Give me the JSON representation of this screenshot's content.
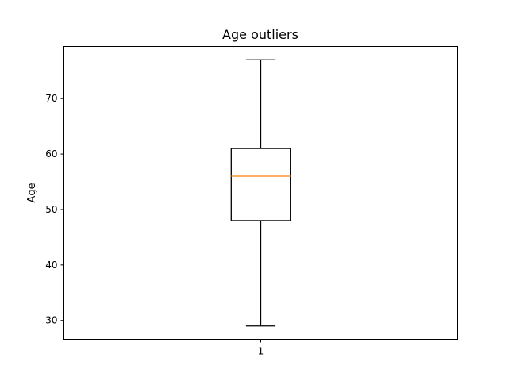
{
  "chart_data": {
    "type": "boxplot",
    "title": "Age outliers",
    "xlabel": "",
    "ylabel": "Age",
    "categories": [
      "1"
    ],
    "boxes": [
      {
        "category": "1",
        "whisker_low": 29,
        "q1": 48,
        "median": 56,
        "q3": 61,
        "whisker_high": 77
      }
    ],
    "ylim": [
      26.6,
      79.4
    ],
    "yticks": [
      30,
      40,
      50,
      60,
      70
    ],
    "grid": false,
    "colors": {
      "box": "#000000",
      "median": "#ff7f0e",
      "axes": "#000000"
    }
  }
}
